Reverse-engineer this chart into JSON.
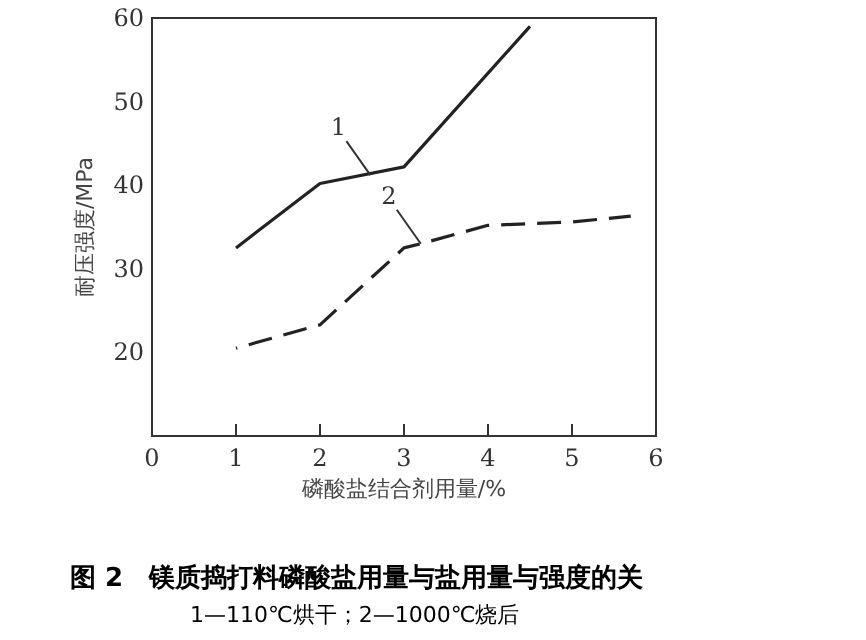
{
  "chart_data": {
    "type": "line",
    "title": "图 2　镁质捣打料磷酸盐用量与盐用量与强度的关",
    "subtitle": "1—110℃烘干；2—1000℃烧后",
    "xlabel": "磷酸盐结合剂用量/%",
    "ylabel": "耐压强度/MPa",
    "xlim": [
      0,
      6
    ],
    "xticks": [
      0,
      1,
      2,
      3,
      4,
      5,
      6
    ],
    "ylim": [
      10,
      60
    ],
    "yticks": [
      20,
      30,
      40,
      50,
      60
    ],
    "grid": false,
    "series": [
      {
        "color": "#222222",
        "line_style": "solid",
        "x": [
          1,
          2,
          3,
          4.5
        ],
        "values": [
          32.5,
          40.2,
          42.2,
          59
        ]
      },
      {
        "color": "#222222",
        "line_style": "dashed",
        "x": [
          1,
          2,
          3,
          3.2,
          4,
          5,
          5.7
        ],
        "values": [
          20.5,
          23.3,
          32.5,
          33,
          35.2,
          35.6,
          36.3
        ]
      }
    ],
    "annotations": [
      {
        "text": "1",
        "x": 2.6,
        "y": 41.2
      },
      {
        "text": "2",
        "x": 3.2,
        "y": 33
      }
    ]
  }
}
